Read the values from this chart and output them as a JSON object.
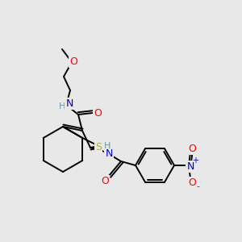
{
  "bg_color": "#e8e8e8",
  "atom_colors": {
    "C": "#000000",
    "H": "#5f9ea0",
    "N": "#0000cd",
    "O": "#ff0000",
    "S": "#b8b800"
  },
  "bond_color": "#000000",
  "bond_width": 1.4,
  "figsize": [
    3.0,
    3.0
  ],
  "dpi": 100
}
